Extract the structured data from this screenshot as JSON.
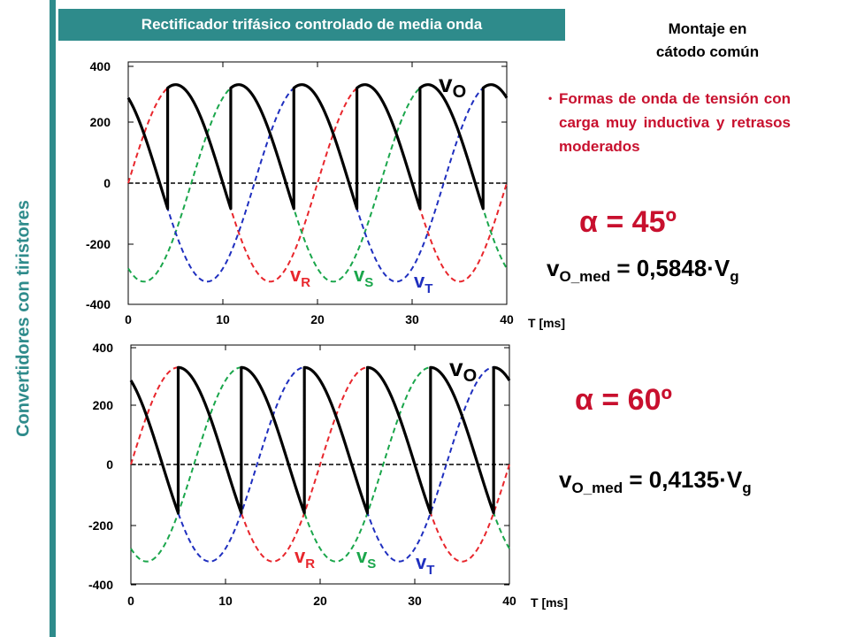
{
  "sidebar_title": "Convertidores con tiristores",
  "header": "Rectificador trifásico controlado de media onda",
  "montaje_line1": "Montaje en",
  "montaje_line2": "cátodo común",
  "bullet": "Formas de onda de tensión con carga muy inductiva y retrasos moderados",
  "case1": {
    "alpha_symbol": "α",
    "alpha_text": "= 45º",
    "vmed_main": "v",
    "vmed_sub": "O_med",
    "vmed_mid": " = 0,5848·V",
    "vmed_sub2": "g"
  },
  "case2": {
    "alpha_symbol": "α",
    "alpha_text": "= 60º",
    "vmed_main": "v",
    "vmed_sub": "O_med",
    "vmed_mid": " = 0,4135·V",
    "vmed_sub2": "g"
  },
  "chart_data": [
    {
      "type": "line",
      "xlabel": "T [ms]",
      "xlim": [
        0,
        40
      ],
      "ylim": [
        -400,
        400
      ],
      "x_ticks": [
        "0",
        "10",
        "20",
        "30",
        "40"
      ],
      "y_ticks": [
        "400",
        "200",
        "0",
        "-200",
        "-400"
      ],
      "amplitude": 325,
      "frequency_hz": 50,
      "firing_angle_deg": 45,
      "series": [
        {
          "name": "vR",
          "color": "#e8262c",
          "phase_deg": 0,
          "dashed": true
        },
        {
          "name": "vS",
          "color": "#1aa64b",
          "phase_deg": -120,
          "dashed": true
        },
        {
          "name": "vT",
          "color": "#1f2fbf",
          "phase_deg": 120,
          "dashed": true
        },
        {
          "name": "vO",
          "color": "#000000",
          "dashed": false
        }
      ]
    },
    {
      "type": "line",
      "xlabel": "T [ms]",
      "xlim": [
        0,
        40
      ],
      "ylim": [
        -400,
        400
      ],
      "x_ticks": [
        "0",
        "10",
        "20",
        "30",
        "40"
      ],
      "y_ticks": [
        "400",
        "200",
        "0",
        "-200",
        "-400"
      ],
      "amplitude": 325,
      "frequency_hz": 50,
      "firing_angle_deg": 60,
      "series": [
        {
          "name": "vR",
          "color": "#e8262c",
          "phase_deg": 0,
          "dashed": true
        },
        {
          "name": "vS",
          "color": "#1aa64b",
          "phase_deg": -120,
          "dashed": true
        },
        {
          "name": "vT",
          "color": "#1f2fbf",
          "phase_deg": 120,
          "dashed": true
        },
        {
          "name": "vO",
          "color": "#000000",
          "dashed": false
        }
      ]
    }
  ]
}
